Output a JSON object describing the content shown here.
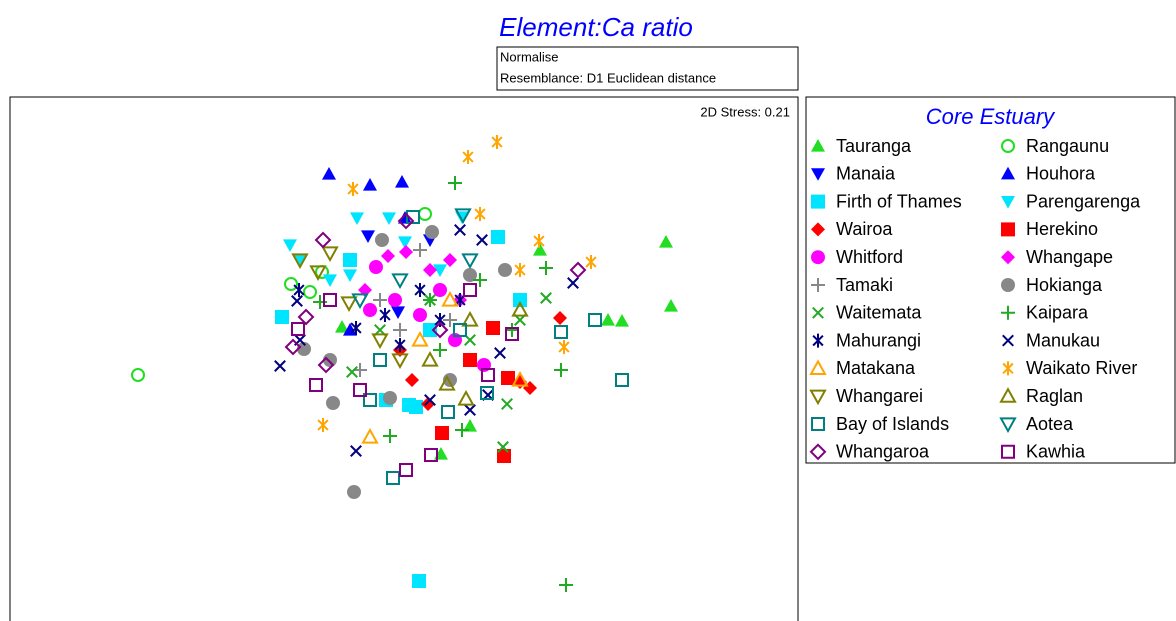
{
  "chart_data": {
    "type": "scatter",
    "title": "Element:Ca ratio",
    "notes": [
      "Normalise",
      "Resemblance: D1 Euclidean distance"
    ],
    "stress": "2D Stress: 0.21",
    "legend_title": "Core Estuary",
    "xlim": [
      0,
      788
    ],
    "ylim": [
      0,
      524
    ],
    "series": [
      {
        "name": "Tauranga",
        "color": "#22dd22",
        "marker": "triangle-up",
        "x": [
          656,
          661,
          598,
          612,
          530,
          460,
          431,
          332
        ],
        "values": [
          379,
          315,
          301,
          300,
          371,
          195,
          167,
          294
        ]
      },
      {
        "name": "Rangaunu",
        "color": "#22dd22",
        "marker": "circle-open",
        "x": [
          128,
          415,
          281,
          312,
          300
        ],
        "values": [
          246,
          407,
          337,
          349,
          329
        ]
      },
      {
        "name": "Manaia",
        "color": "#0000ff",
        "marker": "triangle-down",
        "x": [
          358,
          388,
          420
        ],
        "values": [
          385,
          309,
          381
        ]
      },
      {
        "name": "Houhora",
        "color": "#0000ff",
        "marker": "triangle-up",
        "x": [
          319,
          360,
          392,
          395,
          340
        ],
        "values": [
          447,
          436,
          439,
          403,
          291
        ]
      },
      {
        "name": "Firth of Thames",
        "color": "#00e5ff",
        "marker": "square",
        "x": [
          409,
          272,
          488,
          399,
          406,
          376,
          340,
          510,
          420
        ],
        "values": [
          40,
          304,
          384,
          216,
          214,
          221,
          361,
          321,
          291
        ]
      },
      {
        "name": "Parengarenga",
        "color": "#00e5ff",
        "marker": "triangle-down",
        "x": [
          347,
          379,
          452,
          280,
          395,
          340,
          320,
          430,
          290
        ],
        "values": [
          403,
          403,
          404,
          376,
          379,
          346,
          341,
          351,
          361
        ]
      },
      {
        "name": "Wairoa",
        "color": "#ff0000",
        "marker": "diamond",
        "x": [
          520,
          550,
          418,
          402,
          510,
          390
        ],
        "values": [
          233,
          303,
          217,
          241,
          239,
          271
        ]
      },
      {
        "name": "Herekino",
        "color": "#ff0000",
        "marker": "square",
        "x": [
          494,
          432,
          483,
          498,
          460
        ],
        "values": [
          165,
          188,
          293,
          243,
          261
        ]
      },
      {
        "name": "Whitford",
        "color": "#ff00ff",
        "marker": "circle",
        "x": [
          366,
          360,
          385,
          430,
          474,
          410,
          445
        ],
        "values": [
          354,
          311,
          321,
          331,
          256,
          306,
          281
        ]
      },
      {
        "name": "Whangape",
        "color": "#ff00ff",
        "marker": "diamond",
        "x": [
          396,
          378,
          355,
          420,
          450,
          440
        ],
        "values": [
          369,
          365,
          331,
          351,
          321,
          361
        ]
      },
      {
        "name": "Tamaki",
        "color": "#888888",
        "marker": "plus",
        "x": [
          410,
          370,
          390,
          440,
          350
        ],
        "values": [
          371,
          321,
          291,
          301,
          251
        ]
      },
      {
        "name": "Hokianga",
        "color": "#888888",
        "marker": "circle",
        "x": [
          344,
          323,
          380,
          294,
          422,
          372,
          495,
          320,
          440,
          460
        ],
        "values": [
          129,
          218,
          223,
          272,
          389,
          381,
          351,
          261,
          241,
          346
        ]
      },
      {
        "name": "Waitemata",
        "color": "#22aa22",
        "marker": "x",
        "x": [
          493,
          497,
          342,
          536,
          460,
          420,
          510,
          370
        ],
        "values": [
          174,
          217,
          249,
          323,
          281,
          321,
          301,
          291
        ]
      },
      {
        "name": "Kaipara",
        "color": "#22aa22",
        "marker": "plus",
        "x": [
          445,
          556,
          551,
          452,
          536,
          470,
          502,
          430,
          310,
          420,
          380
        ],
        "values": [
          438,
          36,
          251,
          191,
          353,
          341,
          291,
          271,
          319,
          321,
          185
        ]
      },
      {
        "name": "Mahurangi",
        "color": "#000080",
        "marker": "asterisk",
        "x": [
          289,
          346,
          375,
          430,
          450,
          390,
          410
        ],
        "values": [
          331,
          293,
          306,
          301,
          321,
          276,
          331
        ]
      },
      {
        "name": "Manukau",
        "color": "#000080",
        "marker": "x",
        "x": [
          346,
          270,
          287,
          290,
          472,
          563,
          490,
          420,
          460,
          478,
          450
        ],
        "values": [
          170,
          255,
          320,
          281,
          381,
          338,
          268,
          221,
          211,
          226,
          391
        ]
      },
      {
        "name": "Matakana",
        "color": "#ffa500",
        "marker": "triangle-open",
        "x": [
          360,
          510,
          440,
          410
        ],
        "values": [
          184,
          241,
          321,
          281
        ]
      },
      {
        "name": "Waikato River",
        "color": "#ffa500",
        "marker": "asterisk",
        "x": [
          487,
          458,
          343,
          470,
          529,
          581,
          554,
          313,
          510
        ],
        "values": [
          479,
          464,
          432,
          407,
          380,
          359,
          274,
          196,
          351
        ]
      },
      {
        "name": "Whangarei",
        "color": "#808000",
        "marker": "triangle-down-open",
        "x": [
          320,
          308,
          339,
          290,
          390,
          370
        ],
        "values": [
          368,
          349,
          318,
          361,
          261,
          281
        ]
      },
      {
        "name": "Raglan",
        "color": "#808000",
        "marker": "triangle-open",
        "x": [
          437,
          456,
          510,
          420,
          460
        ],
        "values": [
          237,
          222,
          311,
          261,
          301
        ]
      },
      {
        "name": "Bay of Islands",
        "color": "#008080",
        "marker": "square-open",
        "x": [
          612,
          585,
          551,
          383,
          438,
          477,
          403,
          360,
          370,
          450
        ],
        "values": [
          241,
          301,
          289,
          143,
          209,
          228,
          404,
          221,
          261,
          291
        ]
      },
      {
        "name": "Aotea",
        "color": "#008080",
        "marker": "triangle-down-open",
        "x": [
          453,
          460,
          350,
          390
        ],
        "values": [
          406,
          361,
          321,
          341
        ]
      },
      {
        "name": "Whangaroa",
        "color": "#800080",
        "marker": "diamond-open",
        "x": [
          396,
          568,
          283,
          296,
          313,
          316,
          430
        ],
        "values": [
          400,
          351,
          274,
          304,
          381,
          256,
          291
        ]
      },
      {
        "name": "Kawhia",
        "color": "#800080",
        "marker": "square-open",
        "x": [
          396,
          421,
          288,
          306,
          350,
          502,
          478,
          320,
          460
        ],
        "values": [
          151,
          166,
          292,
          236,
          231,
          287,
          246,
          321,
          331
        ]
      }
    ]
  }
}
